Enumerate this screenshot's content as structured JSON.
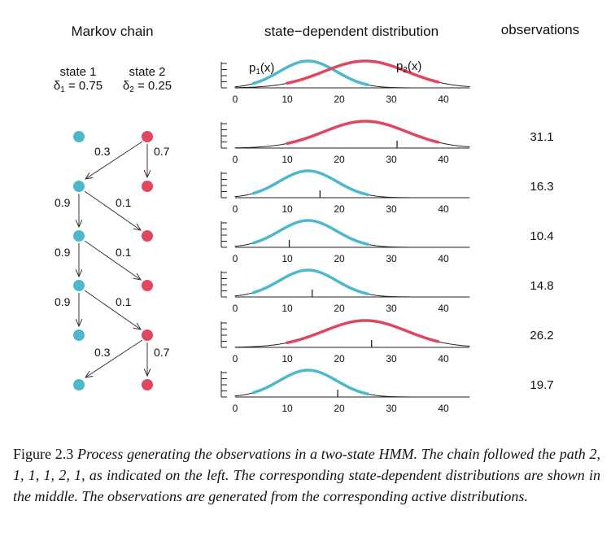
{
  "headings": {
    "markov_chain": "Markov chain",
    "distribution": "state−dependent distribution",
    "observations": "observations"
  },
  "states": {
    "state1_label": "state 1",
    "state2_label": "state 2",
    "delta1_symbol": "δ",
    "delta1_sub": "1",
    "delta1_value": " = 0.75",
    "delta2_symbol": "δ",
    "delta2_sub": "2",
    "delta2_value": " = 0.25",
    "color_state1": "#4db8cc",
    "color_state2": "#e0475e"
  },
  "chain": {
    "path": [
      2,
      1,
      1,
      1,
      2,
      1
    ],
    "transition_labels": [
      "0.3",
      "0.7",
      "0.9",
      "0.1",
      "0.9",
      "0.1",
      "0.9",
      "0.1",
      "0.3",
      "0.7"
    ]
  },
  "densities": {
    "p1_label": "p",
    "p1_sub": "1",
    "p1_arg": "(x)",
    "p2_label": "p",
    "p2_sub": "2",
    "p2_arg": "(x)",
    "p1_mean": 14,
    "p1_sd": 5.5,
    "p2_mean": 25,
    "p2_sd": 8,
    "x_range": [
      0,
      45
    ],
    "x_ticks": [
      "0",
      "10",
      "20",
      "30",
      "40"
    ],
    "active_range_p1": [
      3.5,
      25.5
    ],
    "active_range_p2": [
      10,
      39
    ]
  },
  "observations": [
    "31.1",
    "16.3",
    "10.4",
    "14.8",
    "26.2",
    "19.7"
  ],
  "caption": {
    "label": "Figure 2.3",
    "text": "Process generating the observations in a two-state HMM. The chain followed the path 2, 1, 1, 1, 2, 1, as indicated on the left. The corresponding state-dependent distributions are shown in the middle. The observations are generated from the corresponding active distributions."
  }
}
